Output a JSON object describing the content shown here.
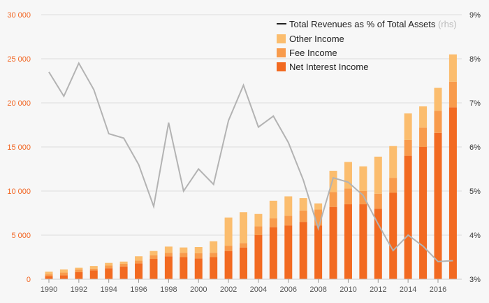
{
  "chart_data": {
    "type": "bar",
    "stacked": true,
    "categories": [
      1990,
      1991,
      1992,
      1993,
      1994,
      1995,
      1996,
      1997,
      1998,
      1999,
      2000,
      2001,
      2002,
      2003,
      2004,
      2005,
      2006,
      2007,
      2008,
      2009,
      2010,
      2011,
      2012,
      2013,
      2014,
      2015,
      2016,
      2017
    ],
    "x_tick_labels": [
      "1990",
      "1992",
      "1994",
      "1996",
      "1998",
      "2000",
      "2002",
      "2004",
      "2006",
      "2008",
      "2010",
      "2012",
      "2014",
      "2016"
    ],
    "series": [
      {
        "name": "Net Interest Income",
        "color": "#f26a21",
        "values": [
          350,
          450,
          800,
          1000,
          1250,
          1450,
          1800,
          2300,
          2600,
          2500,
          2350,
          2500,
          3200,
          3600,
          5000,
          5900,
          6100,
          6500,
          6100,
          8200,
          8500,
          8500,
          8000,
          9800,
          14000,
          15000,
          16600,
          19500
        ]
      },
      {
        "name": "Fee Income",
        "color": "#f89b4c",
        "values": [
          200,
          300,
          300,
          200,
          300,
          300,
          300,
          400,
          400,
          500,
          600,
          500,
          600,
          500,
          1000,
          1000,
          1100,
          1300,
          1800,
          1700,
          1800,
          1500,
          1700,
          1700,
          1800,
          2200,
          2500,
          2900
        ]
      },
      {
        "name": "Other Income",
        "color": "#fbbd6e",
        "values": [
          300,
          350,
          200,
          300,
          300,
          250,
          500,
          500,
          700,
          600,
          700,
          1300,
          3200,
          3500,
          1400,
          2000,
          2200,
          1400,
          700,
          2400,
          3000,
          2800,
          4200,
          3600,
          3000,
          2400,
          2600,
          3100
        ]
      }
    ],
    "line_series": {
      "name": "Total Revenues as % of Total Assets",
      "suffix": "(rhs)",
      "axis": "right",
      "color": "#b3b3b3",
      "values": [
        7.7,
        7.15,
        7.9,
        7.3,
        6.3,
        6.2,
        5.6,
        4.65,
        6.55,
        5.0,
        5.5,
        5.15,
        6.6,
        7.4,
        6.45,
        6.7,
        6.1,
        5.25,
        4.15,
        5.3,
        5.2,
        4.9,
        4.25,
        3.65,
        4.0,
        3.75,
        3.4,
        3.42
      ]
    },
    "y_left": {
      "min": 0,
      "max": 30000,
      "ticks": [
        0,
        5000,
        10000,
        15000,
        20000,
        25000,
        30000
      ],
      "tick_labels": [
        "0",
        "5 000",
        "10 000",
        "15 000",
        "20 000",
        "25 000",
        "30 000"
      ]
    },
    "y_right": {
      "min": 3,
      "max": 9,
      "ticks": [
        3,
        4,
        5,
        6,
        7,
        8,
        9
      ],
      "tick_labels": [
        "3%",
        "4%",
        "5%",
        "6%",
        "7%",
        "8%",
        "9%"
      ]
    },
    "legend_position": "top-right",
    "grid": true
  },
  "colors": {
    "left_axis": "#f26522",
    "grid": "#dddddd",
    "background": "#f7f7f7"
  }
}
